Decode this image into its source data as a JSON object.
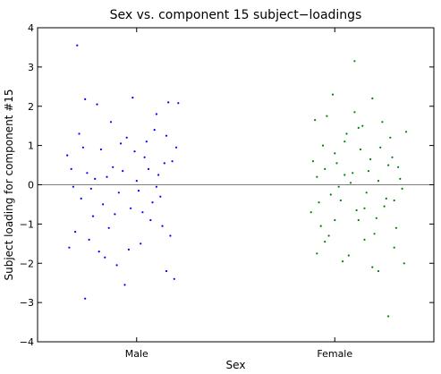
{
  "chart_data": {
    "type": "scatter",
    "title": "Sex vs. component 15 subject−loadings",
    "xlabel": "Sex",
    "ylabel": "Subject loading for component #15",
    "categories": [
      "Male",
      "Female"
    ],
    "ylim": [
      -4,
      4
    ],
    "yticks": [
      "−4",
      "−3",
      "−2",
      "−1",
      "0",
      "1",
      "2",
      "3",
      "4"
    ],
    "xlim": [
      0.5,
      2.5
    ],
    "zero_line": true,
    "grid": false,
    "jitter_half_width": 0.38,
    "series": [
      {
        "category": "Male",
        "color": "#0000ff",
        "points": [
          [
            0.65,
            0.75
          ],
          [
            0.7,
            3.55
          ],
          [
            0.74,
            -2.9
          ],
          [
            0.74,
            2.18
          ],
          [
            0.8,
            2.05
          ],
          [
            0.98,
            2.22
          ],
          [
            0.66,
            -1.6
          ],
          [
            0.94,
            -2.55
          ],
          [
            1.19,
            -2.4
          ],
          [
            1.15,
            -2.2
          ],
          [
            0.84,
            -1.85
          ],
          [
            0.9,
            -2.05
          ],
          [
            1.1,
            1.8
          ],
          [
            1.16,
            2.1
          ],
          [
            1.21,
            2.08
          ],
          [
            0.72,
            -0.35
          ],
          [
            0.75,
            0.3
          ],
          [
            0.78,
            -0.8
          ],
          [
            0.82,
            0.9
          ],
          [
            0.86,
            -1.1
          ],
          [
            0.88,
            0.45
          ],
          [
            0.91,
            -0.2
          ],
          [
            0.95,
            1.2
          ],
          [
            0.97,
            -0.6
          ],
          [
            1.0,
            0.1
          ],
          [
            1.02,
            -1.5
          ],
          [
            1.04,
            0.7
          ],
          [
            1.07,
            -0.9
          ],
          [
            1.09,
            1.4
          ],
          [
            1.12,
            -0.3
          ],
          [
            1.14,
            0.55
          ],
          [
            1.17,
            -1.3
          ],
          [
            1.2,
            0.95
          ],
          [
            0.68,
            -0.05
          ],
          [
            0.71,
            1.3
          ],
          [
            0.76,
            -1.4
          ],
          [
            0.79,
            0.15
          ],
          [
            0.83,
            -0.5
          ],
          [
            0.87,
            1.6
          ],
          [
            0.89,
            -0.75
          ],
          [
            0.93,
            0.35
          ],
          [
            0.96,
            -1.65
          ],
          [
            0.99,
            0.85
          ],
          [
            1.01,
            -0.15
          ],
          [
            1.05,
            1.1
          ],
          [
            1.08,
            -0.45
          ],
          [
            1.11,
            0.25
          ],
          [
            1.13,
            -1.05
          ],
          [
            1.18,
            0.6
          ],
          [
            0.67,
            0.4
          ],
          [
            0.69,
            -1.2
          ],
          [
            0.73,
            0.95
          ],
          [
            0.77,
            -0.1
          ],
          [
            0.81,
            -1.7
          ],
          [
            0.85,
            0.2
          ],
          [
            0.92,
            1.05
          ],
          [
            1.03,
            -0.7
          ],
          [
            1.06,
            0.4
          ],
          [
            1.1,
            -0.05
          ],
          [
            1.15,
            1.25
          ]
        ]
      },
      {
        "category": "Female",
        "color": "#008000",
        "points": [
          [
            2.1,
            3.15
          ],
          [
            1.99,
            2.3
          ],
          [
            2.19,
            2.2
          ],
          [
            2.27,
            -3.35
          ],
          [
            2.22,
            -2.2
          ],
          [
            1.9,
            1.65
          ],
          [
            1.95,
            -1.45
          ],
          [
            2.0,
            0.8
          ],
          [
            2.03,
            -0.4
          ],
          [
            2.05,
            1.1
          ],
          [
            2.07,
            -1.8
          ],
          [
            2.09,
            0.3
          ],
          [
            2.12,
            -0.9
          ],
          [
            2.14,
            1.5
          ],
          [
            2.16,
            -0.2
          ],
          [
            2.18,
            0.65
          ],
          [
            2.2,
            -1.25
          ],
          [
            2.23,
            0.95
          ],
          [
            2.25,
            -0.55
          ],
          [
            2.28,
            1.2
          ],
          [
            2.3,
            -1.6
          ],
          [
            2.32,
            0.45
          ],
          [
            2.34,
            -0.1
          ],
          [
            2.36,
            1.35
          ],
          [
            1.88,
            -0.7
          ],
          [
            1.91,
            0.2
          ],
          [
            1.93,
            -1.05
          ],
          [
            1.96,
            1.75
          ],
          [
            1.98,
            -0.25
          ],
          [
            2.01,
            0.55
          ],
          [
            2.04,
            -1.95
          ],
          [
            2.06,
            1.3
          ],
          [
            2.08,
            0.05
          ],
          [
            2.11,
            -0.65
          ],
          [
            2.13,
            0.9
          ],
          [
            2.15,
            -1.4
          ],
          [
            2.17,
            0.35
          ],
          [
            2.21,
            -0.85
          ],
          [
            2.24,
            1.6
          ],
          [
            2.26,
            -0.35
          ],
          [
            2.29,
            0.7
          ],
          [
            2.31,
            -1.1
          ],
          [
            2.33,
            0.15
          ],
          [
            2.35,
            -2.0
          ],
          [
            1.89,
            0.6
          ],
          [
            1.92,
            -0.45
          ],
          [
            1.94,
            1.0
          ],
          [
            1.97,
            -1.3
          ],
          [
            2.02,
            -0.05
          ],
          [
            2.1,
            1.85
          ],
          [
            2.19,
            -2.1
          ],
          [
            2.27,
            0.5
          ],
          [
            2.15,
            -0.6
          ],
          [
            2.05,
            0.25
          ],
          [
            1.95,
            0.4
          ],
          [
            2.0,
            -0.9
          ],
          [
            2.22,
            0.1
          ],
          [
            2.3,
            -0.4
          ],
          [
            2.12,
            1.45
          ],
          [
            1.91,
            -1.75
          ]
        ]
      }
    ]
  }
}
